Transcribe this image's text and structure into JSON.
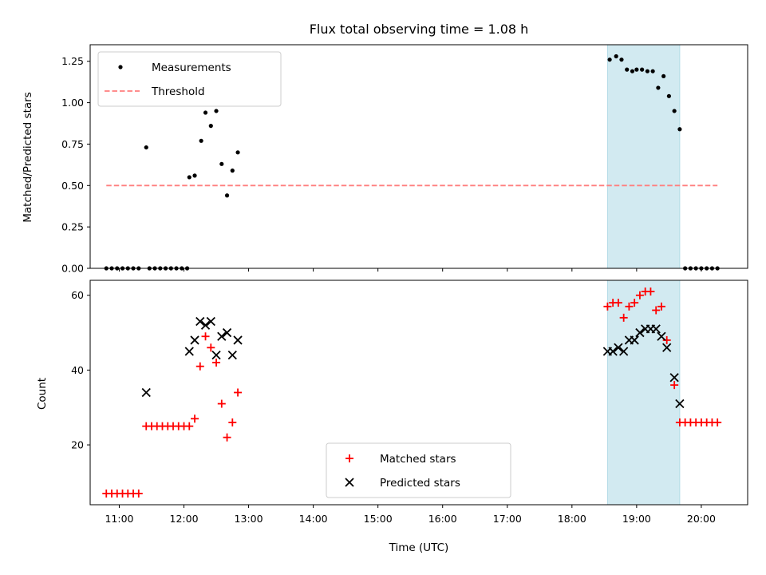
{
  "chart_data": [
    {
      "type": "scatter",
      "title": "Flux total observing time = 1.08 h",
      "xlabel": "",
      "ylabel": "Matched/Predicted stars",
      "xlim": [
        "10:33",
        "20:43"
      ],
      "ylim": [
        0,
        1.35
      ],
      "yticks": [
        "0.00",
        "0.25",
        "0.50",
        "0.75",
        "1.00",
        "1.25"
      ],
      "legend_position": "upper-left",
      "shaded_span": {
        "start": "18:33",
        "end": "19:40",
        "color": "#add8e6"
      },
      "colors": {
        "measurements": "#000000",
        "threshold": "#ff7f7f"
      },
      "series": [
        {
          "name": "Measurements",
          "points": [
            [
              "10:48",
              0
            ],
            [
              "10:53",
              0
            ],
            [
              "10:58",
              0
            ],
            [
              "11:03",
              0
            ],
            [
              "11:08",
              0
            ],
            [
              "11:13",
              0
            ],
            [
              "11:18",
              0
            ],
            [
              "11:25",
              0.73
            ],
            [
              "11:28",
              0
            ],
            [
              "11:33",
              0
            ],
            [
              "11:38",
              0
            ],
            [
              "11:43",
              0
            ],
            [
              "11:48",
              0
            ],
            [
              "11:53",
              0
            ],
            [
              "11:58",
              0
            ],
            [
              "12:03",
              0
            ],
            [
              "12:05",
              0.55
            ],
            [
              "12:10",
              0.56
            ],
            [
              "12:16",
              0.77
            ],
            [
              "12:20",
              0.94
            ],
            [
              "12:25",
              0.86
            ],
            [
              "12:30",
              0.95
            ],
            [
              "12:35",
              0.63
            ],
            [
              "12:40",
              0.44
            ],
            [
              "12:45",
              0.59
            ],
            [
              "12:50",
              0.7
            ],
            [
              "18:35",
              1.26
            ],
            [
              "18:41",
              1.28
            ],
            [
              "18:46",
              1.26
            ],
            [
              "18:51",
              1.2
            ],
            [
              "18:56",
              1.19
            ],
            [
              "19:00",
              1.2
            ],
            [
              "19:05",
              1.2
            ],
            [
              "19:10",
              1.19
            ],
            [
              "19:15",
              1.19
            ],
            [
              "19:20",
              1.09
            ],
            [
              "19:25",
              1.16
            ],
            [
              "19:30",
              1.04
            ],
            [
              "19:35",
              0.95
            ],
            [
              "19:40",
              0.84
            ],
            [
              "19:45",
              0
            ],
            [
              "19:50",
              0
            ],
            [
              "19:55",
              0
            ],
            [
              "20:00",
              0
            ],
            [
              "20:05",
              0
            ],
            [
              "20:10",
              0
            ],
            [
              "20:15",
              0
            ]
          ]
        },
        {
          "name": "Threshold",
          "points": [
            [
              "10:48",
              0.5
            ],
            [
              "20:15",
              0.5
            ]
          ]
        }
      ]
    },
    {
      "type": "scatter",
      "title": "",
      "xlabel": "Time (UTC)",
      "ylabel": "Count",
      "xlim": [
        "10:33",
        "20:43"
      ],
      "ylim": [
        4,
        64
      ],
      "xticks": [
        "11:00",
        "12:00",
        "13:00",
        "14:00",
        "15:00",
        "16:00",
        "17:00",
        "18:00",
        "19:00",
        "20:00"
      ],
      "yticks": [
        "20",
        "40",
        "60"
      ],
      "legend_position": "lower-center",
      "shaded_span": {
        "start": "18:33",
        "end": "19:40",
        "color": "#add8e6"
      },
      "colors": {
        "matched": "#ff0000",
        "predicted": "#000000"
      },
      "series": [
        {
          "name": "Matched stars",
          "points": [
            [
              "10:48",
              7
            ],
            [
              "10:53",
              7
            ],
            [
              "10:58",
              7
            ],
            [
              "11:03",
              7
            ],
            [
              "11:08",
              7
            ],
            [
              "11:13",
              7
            ],
            [
              "11:18",
              7
            ],
            [
              "11:25",
              25
            ],
            [
              "11:30",
              25
            ],
            [
              "11:35",
              25
            ],
            [
              "11:40",
              25
            ],
            [
              "11:45",
              25
            ],
            [
              "11:50",
              25
            ],
            [
              "11:55",
              25
            ],
            [
              "12:00",
              25
            ],
            [
              "12:05",
              25
            ],
            [
              "12:10",
              27
            ],
            [
              "12:15",
              41
            ],
            [
              "12:20",
              49
            ],
            [
              "12:25",
              46
            ],
            [
              "12:30",
              42
            ],
            [
              "12:35",
              31
            ],
            [
              "12:40",
              22
            ],
            [
              "12:45",
              26
            ],
            [
              "12:50",
              34
            ],
            [
              "18:33",
              57
            ],
            [
              "18:38",
              58
            ],
            [
              "18:43",
              58
            ],
            [
              "18:48",
              54
            ],
            [
              "18:53",
              57
            ],
            [
              "18:58",
              58
            ],
            [
              "19:03",
              60
            ],
            [
              "19:08",
              61
            ],
            [
              "19:13",
              61
            ],
            [
              "19:18",
              56
            ],
            [
              "19:23",
              57
            ],
            [
              "19:28",
              48
            ],
            [
              "19:35",
              36
            ],
            [
              "19:40",
              26
            ],
            [
              "19:45",
              26
            ],
            [
              "19:50",
              26
            ],
            [
              "19:55",
              26
            ],
            [
              "20:00",
              26
            ],
            [
              "20:05",
              26
            ],
            [
              "20:10",
              26
            ],
            [
              "20:15",
              26
            ]
          ]
        },
        {
          "name": "Predicted stars",
          "points": [
            [
              "11:25",
              34
            ],
            [
              "12:05",
              45
            ],
            [
              "12:10",
              48
            ],
            [
              "12:15",
              53
            ],
            [
              "12:20",
              52
            ],
            [
              "12:25",
              53
            ],
            [
              "12:30",
              44
            ],
            [
              "12:35",
              49
            ],
            [
              "12:40",
              50
            ],
            [
              "12:45",
              44
            ],
            [
              "12:50",
              48
            ],
            [
              "18:33",
              45
            ],
            [
              "18:38",
              45
            ],
            [
              "18:43",
              46
            ],
            [
              "18:48",
              45
            ],
            [
              "18:53",
              48
            ],
            [
              "18:58",
              48
            ],
            [
              "19:03",
              50
            ],
            [
              "19:08",
              51
            ],
            [
              "19:13",
              51
            ],
            [
              "19:18",
              51
            ],
            [
              "19:23",
              49
            ],
            [
              "19:28",
              46
            ],
            [
              "19:35",
              38
            ],
            [
              "19:40",
              31
            ]
          ]
        }
      ]
    }
  ]
}
